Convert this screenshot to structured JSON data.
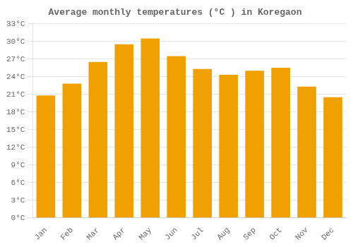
{
  "chart_data": {
    "type": "bar",
    "title": "Average monthly temperatures (°C ) in Koregaon",
    "categories": [
      "Jan",
      "Feb",
      "Mar",
      "Apr",
      "May",
      "Jun",
      "Jul",
      "Aug",
      "Sep",
      "Oct",
      "Nov",
      "Dec"
    ],
    "values": [
      20.8,
      22.8,
      26.5,
      29.5,
      30.5,
      27.5,
      25.3,
      24.3,
      25.0,
      25.5,
      22.3,
      20.5
    ],
    "color": "#F0A000",
    "ylim": [
      0,
      33
    ],
    "yticks": [
      {
        "value": 0,
        "label": "0°C"
      },
      {
        "value": 3,
        "label": "3°C"
      },
      {
        "value": 6,
        "label": "6°C"
      },
      {
        "value": 9,
        "label": "9°C"
      },
      {
        "value": 12,
        "label": "12°C"
      },
      {
        "value": 15,
        "label": "15°C"
      },
      {
        "value": 18,
        "label": "18°C"
      },
      {
        "value": 21,
        "label": "21°C"
      },
      {
        "value": 24,
        "label": "24°C"
      },
      {
        "value": 27,
        "label": "27°C"
      },
      {
        "value": 30,
        "label": "30°C"
      },
      {
        "value": 33,
        "label": "33°C"
      }
    ],
    "grid": true
  }
}
